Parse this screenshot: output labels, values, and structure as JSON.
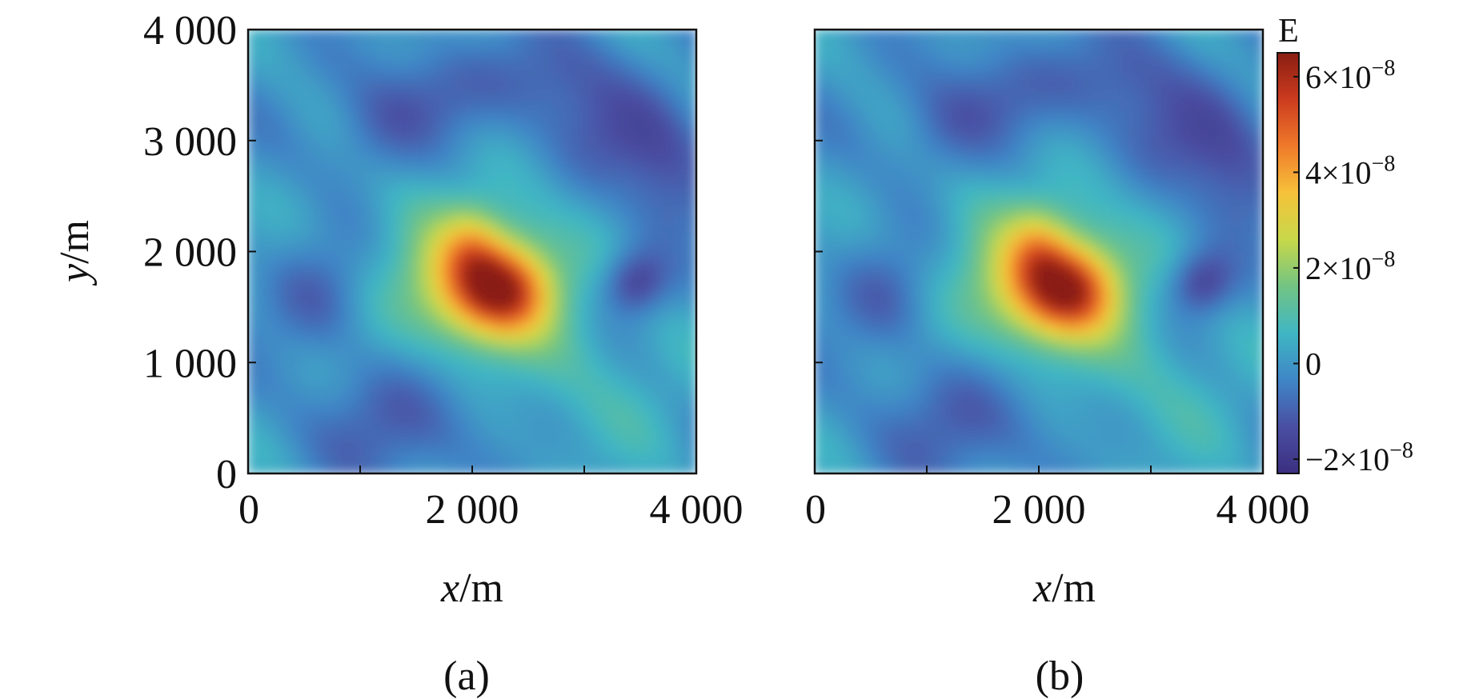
{
  "chart_data": [
    {
      "type": "heatmap",
      "x_range": [
        0,
        4000
      ],
      "y_range": [
        0,
        4000
      ],
      "x_ticks": [
        0,
        1000,
        2000,
        3000,
        4000
      ],
      "x_tick_labels": [
        "0",
        "",
        "2 000",
        "",
        "4 000"
      ],
      "y_ticks": [
        0,
        1000,
        2000,
        3000,
        4000
      ],
      "y_tick_labels": [
        "0",
        "1 000",
        "2 000",
        "3 000",
        "4 000"
      ],
      "xlabel_var": "x",
      "xlabel_unit": "/m",
      "ylabel_var": "y",
      "ylabel_unit": "/m",
      "caption": "(a)",
      "features": [
        {
          "x": 2100,
          "y": 1700,
          "sx": 420,
          "sy": 360,
          "amp": 3.6e-08
        },
        {
          "x": 2300,
          "y": 1650,
          "sx": 280,
          "sy": 260,
          "amp": 2.6e-08
        },
        {
          "x": 2000,
          "y": 2050,
          "sx": 180,
          "sy": 260,
          "amp": 1.2e-08
        },
        {
          "x": 2000,
          "y": 1750,
          "sx": 900,
          "sy": 800,
          "amp": 9e-09
        },
        {
          "x": 3450,
          "y": 1720,
          "sx": 200,
          "sy": 200,
          "amp": -2e-08
        },
        {
          "x": 3300,
          "y": 3050,
          "sx": 500,
          "sy": 350,
          "amp": -1.2e-08
        },
        {
          "x": 1600,
          "y": 3400,
          "sx": 450,
          "sy": 300,
          "amp": -1e-08
        },
        {
          "x": 2700,
          "y": 3600,
          "sx": 400,
          "sy": 300,
          "amp": -1e-08
        },
        {
          "x": 650,
          "y": 1600,
          "sx": 320,
          "sy": 350,
          "amp": -1.2e-08
        },
        {
          "x": 1400,
          "y": 500,
          "sx": 500,
          "sy": 400,
          "amp": -1.3e-08
        },
        {
          "x": 3750,
          "y": 2500,
          "sx": 300,
          "sy": 400,
          "amp": -1e-08
        },
        {
          "x": 1100,
          "y": 3000,
          "sx": 300,
          "sy": 300,
          "amp": -8e-09
        },
        {
          "x": 3300,
          "y": 700,
          "sx": 600,
          "sy": 500,
          "amp": 5e-09
        }
      ]
    },
    {
      "type": "heatmap",
      "x_range": [
        0,
        4000
      ],
      "y_range": [
        0,
        4000
      ],
      "x_ticks": [
        0,
        1000,
        2000,
        3000,
        4000
      ],
      "x_tick_labels": [
        "0",
        "",
        "2 000",
        "",
        "4 000"
      ],
      "y_ticks": [
        0,
        1000,
        2000,
        3000,
        4000
      ],
      "y_tick_labels": [
        "",
        "",
        "",
        "",
        ""
      ],
      "xlabel_var": "x",
      "xlabel_unit": "/m",
      "caption": "(b)",
      "features": [
        {
          "x": 2100,
          "y": 1700,
          "sx": 420,
          "sy": 360,
          "amp": 3.55e-08
        },
        {
          "x": 2300,
          "y": 1650,
          "sx": 280,
          "sy": 260,
          "amp": 2.55e-08
        },
        {
          "x": 2000,
          "y": 2050,
          "sx": 180,
          "sy": 260,
          "amp": 1.2e-08
        },
        {
          "x": 2000,
          "y": 1750,
          "sx": 900,
          "sy": 800,
          "amp": 9e-09
        },
        {
          "x": 3450,
          "y": 1720,
          "sx": 200,
          "sy": 200,
          "amp": -2e-08
        },
        {
          "x": 3300,
          "y": 3050,
          "sx": 500,
          "sy": 350,
          "amp": -1.2e-08
        },
        {
          "x": 1600,
          "y": 3400,
          "sx": 450,
          "sy": 300,
          "amp": -1e-08
        },
        {
          "x": 2700,
          "y": 3600,
          "sx": 400,
          "sy": 300,
          "amp": -1e-08
        },
        {
          "x": 650,
          "y": 1600,
          "sx": 320,
          "sy": 350,
          "amp": -1.2e-08
        },
        {
          "x": 1400,
          "y": 500,
          "sx": 500,
          "sy": 400,
          "amp": -1.3e-08
        },
        {
          "x": 3750,
          "y": 2500,
          "sx": 300,
          "sy": 400,
          "amp": -1e-08
        },
        {
          "x": 1100,
          "y": 3000,
          "sx": 300,
          "sy": 300,
          "amp": -8e-09
        },
        {
          "x": 3300,
          "y": 700,
          "sx": 600,
          "sy": 500,
          "amp": 5e-09
        }
      ]
    }
  ],
  "colorbar": {
    "title": "E",
    "range": [
      -2.3e-08,
      6.5e-08
    ],
    "ticks": [
      {
        "value": 6e-08,
        "mantissa": "6×10",
        "exp": "−8"
      },
      {
        "value": 4e-08,
        "mantissa": "4×10",
        "exp": "−8"
      },
      {
        "value": 2e-08,
        "mantissa": "2×10",
        "exp": "−8"
      },
      {
        "value": 0,
        "mantissa": "0",
        "exp": ""
      },
      {
        "value": -2e-08,
        "mantissa": "−2×10",
        "exp": "−8"
      }
    ],
    "colors": [
      "#3b2f80",
      "#4a4fa3",
      "#3f86c6",
      "#3fb6c4",
      "#72c483",
      "#c7d84a",
      "#f6c23a",
      "#ef7a2a",
      "#cc3b1f",
      "#8a1e12"
    ]
  }
}
